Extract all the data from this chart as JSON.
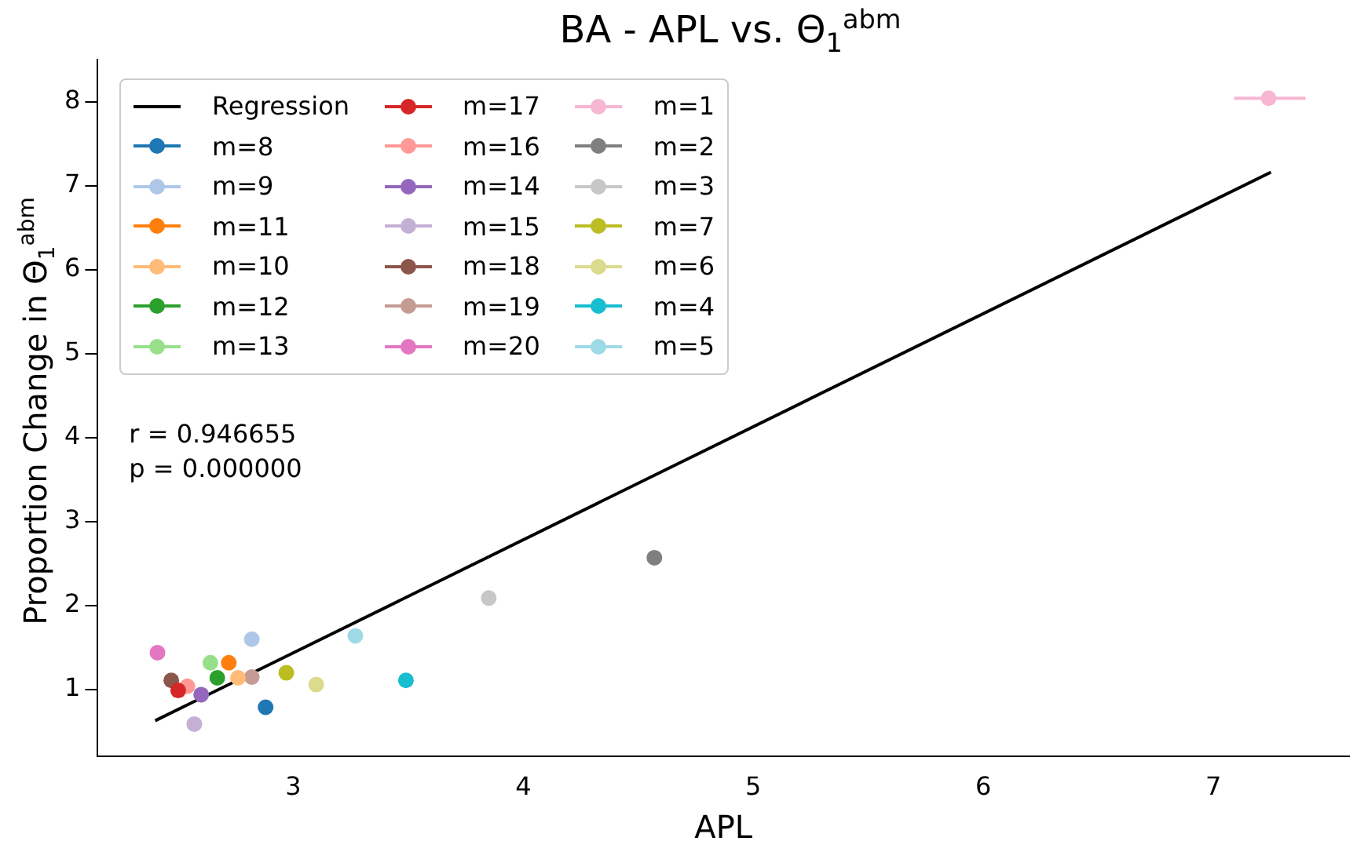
{
  "chart_data": {
    "type": "scatter",
    "title": "BA - APL vs. Θ$_{1}$$^{abm}$",
    "xlabel": "APL",
    "ylabel": "Proportion Change in Θ$_{1}$$^{abm}$",
    "xlim": [
      2.15,
      7.59
    ],
    "ylim": [
      0.21,
      8.5
    ],
    "xticks": [
      3,
      4,
      5,
      6,
      7
    ],
    "yticks": [
      1,
      2,
      3,
      4,
      5,
      6,
      7,
      8
    ],
    "grid": false,
    "legend": "top left",
    "marker": "circle",
    "annotations": [
      "r = 0.946655",
      "p = 0.000000"
    ],
    "series": [
      {
        "name": "Regression",
        "type": "line",
        "color": "#000000",
        "x": [
          2.4,
          7.25
        ],
        "values": [
          0.63,
          7.16
        ],
        "marker": "none"
      },
      {
        "name": "m=8",
        "color": "#1f77b4",
        "x": [
          2.88
        ],
        "values": [
          0.79
        ]
      },
      {
        "name": "m=9",
        "color": "#aec7e8",
        "x": [
          2.82
        ],
        "values": [
          1.6
        ]
      },
      {
        "name": "m=11",
        "color": "#ff7f0e",
        "x": [
          2.72
        ],
        "values": [
          1.32
        ]
      },
      {
        "name": "m=10",
        "color": "#ffbb78",
        "x": [
          2.76
        ],
        "values": [
          1.14
        ]
      },
      {
        "name": "m=12",
        "color": "#2ca02c",
        "x": [
          2.67
        ],
        "values": [
          1.14
        ]
      },
      {
        "name": "m=13",
        "color": "#98df8a",
        "x": [
          2.64
        ],
        "values": [
          1.32
        ]
      },
      {
        "name": "m=17",
        "color": "#d62728",
        "x": [
          2.5
        ],
        "values": [
          0.99
        ]
      },
      {
        "name": "m=16",
        "color": "#ff9896",
        "x": [
          2.54
        ],
        "values": [
          1.04
        ]
      },
      {
        "name": "m=14",
        "color": "#9467bd",
        "x": [
          2.6
        ],
        "values": [
          0.94
        ]
      },
      {
        "name": "m=15",
        "color": "#c5b0d5",
        "x": [
          2.57
        ],
        "values": [
          0.59
        ]
      },
      {
        "name": "m=18",
        "color": "#8c564b",
        "x": [
          2.47
        ],
        "values": [
          1.11
        ]
      },
      {
        "name": "m=19",
        "color": "#c49c94",
        "x": [
          2.82
        ],
        "values": [
          1.15
        ]
      },
      {
        "name": "m=20",
        "color": "#e377c2",
        "x": [
          2.41
        ],
        "values": [
          1.44
        ]
      },
      {
        "name": "m=1",
        "color": "#f7b6d2",
        "x": [
          7.24
        ],
        "values": [
          8.04
        ],
        "xerrors": [
          [
            7.09,
            7.4
          ]
        ]
      },
      {
        "name": "m=2",
        "color": "#7f7f7f",
        "x": [
          4.57
        ],
        "values": [
          2.57
        ]
      },
      {
        "name": "m=3",
        "color": "#c7c7c7",
        "x": [
          3.85
        ],
        "values": [
          2.09
        ]
      },
      {
        "name": "m=7",
        "color": "#bcbd22",
        "x": [
          2.97
        ],
        "values": [
          1.2
        ]
      },
      {
        "name": "m=6",
        "color": "#dbdb8d",
        "x": [
          3.1
        ],
        "values": [
          1.06
        ]
      },
      {
        "name": "m=4",
        "color": "#17becf",
        "x": [
          3.49
        ],
        "values": [
          1.11
        ]
      },
      {
        "name": "m=5",
        "color": "#9edae5",
        "x": [
          3.27
        ],
        "values": [
          1.64
        ]
      }
    ]
  }
}
